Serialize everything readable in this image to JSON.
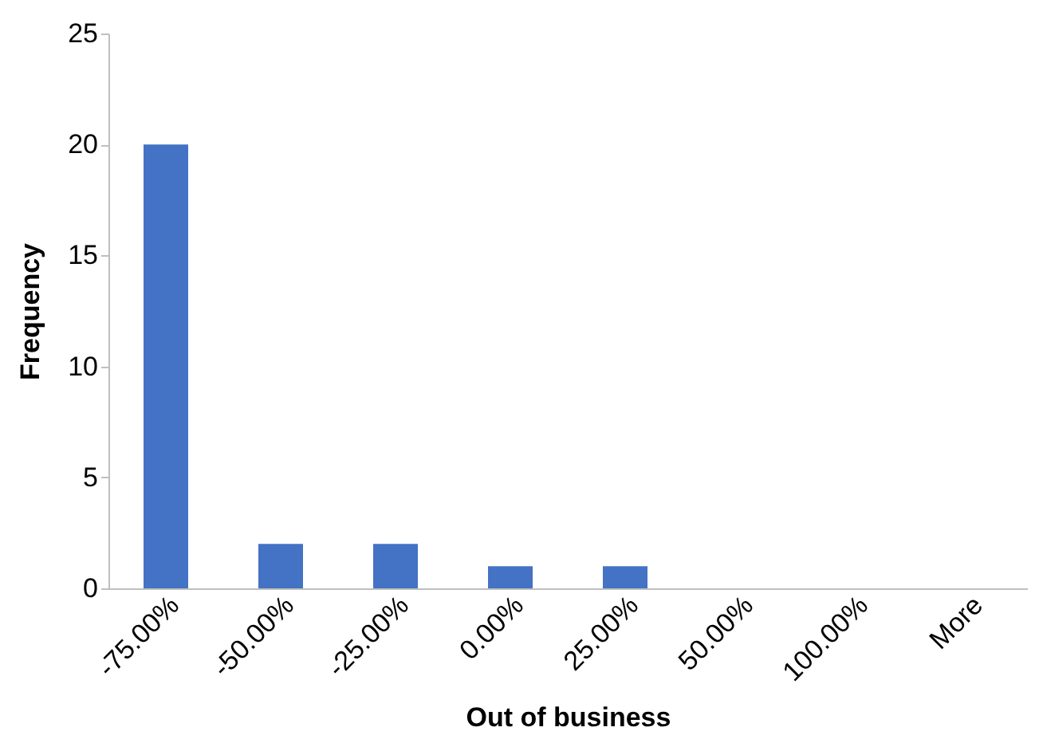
{
  "chart_data": {
    "type": "bar",
    "xlabel": "Out of business",
    "ylabel": "Frequency",
    "categories": [
      "-75.00%",
      "-50.00%",
      "-25.00%",
      "0.00%",
      "25.00%",
      "50.00%",
      "100.00%",
      "More"
    ],
    "values": [
      20,
      2,
      2,
      1,
      1,
      0,
      0,
      0
    ],
    "color": "#4472c4",
    "ylim": [
      0,
      25
    ],
    "yticks": [
      0,
      5,
      10,
      15,
      20,
      25
    ],
    "grid": false
  }
}
